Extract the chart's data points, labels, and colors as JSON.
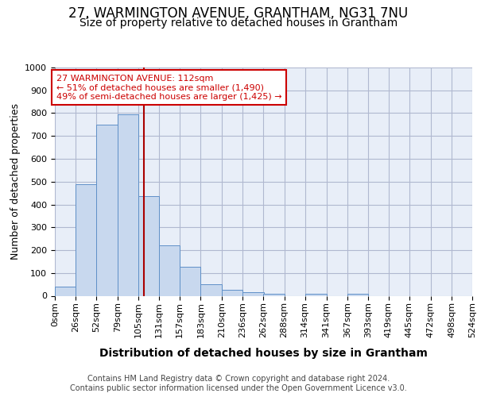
{
  "title1": "27, WARMINGTON AVENUE, GRANTHAM, NG31 7NU",
  "title2": "Size of property relative to detached houses in Grantham",
  "xlabel": "Distribution of detached houses by size in Grantham",
  "ylabel": "Number of detached properties",
  "footer1": "Contains HM Land Registry data © Crown copyright and database right 2024.",
  "footer2": "Contains public sector information licensed under the Open Government Licence v3.0.",
  "annotation_line1": "27 WARMINGTON AVENUE: 112sqm",
  "annotation_line2": "← 51% of detached houses are smaller (1,490)",
  "annotation_line3": "49% of semi-detached houses are larger (1,425) →",
  "property_sqm": 112,
  "bar_edges": [
    0,
    26,
    52,
    79,
    105,
    131,
    157,
    183,
    210,
    236,
    262,
    288,
    314,
    341,
    367,
    393,
    419,
    445,
    472,
    498,
    524
  ],
  "bar_heights": [
    40,
    490,
    750,
    795,
    435,
    220,
    128,
    50,
    27,
    16,
    10,
    0,
    8,
    0,
    8,
    0,
    0,
    0,
    0,
    0
  ],
  "bar_color": "#c8d8ee",
  "bar_edge_color": "#6090c8",
  "vline_color": "#aa0000",
  "annotation_box_edge": "#cc0000",
  "annotation_text_color": "#cc0000",
  "plot_bg_color": "#e8eef8",
  "background_color": "#ffffff",
  "grid_color": "#b0b8d0",
  "ylim": [
    0,
    1000
  ],
  "yticks": [
    0,
    100,
    200,
    300,
    400,
    500,
    600,
    700,
    800,
    900,
    1000
  ],
  "title1_fontsize": 12,
  "title2_fontsize": 10,
  "ylabel_fontsize": 9,
  "xlabel_fontsize": 10,
  "tick_fontsize": 8,
  "footer_fontsize": 7
}
